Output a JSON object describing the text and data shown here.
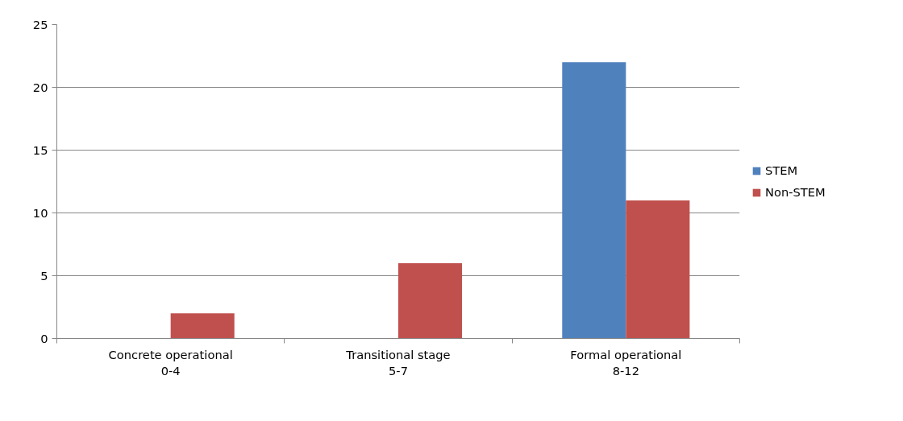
{
  "chart_data": {
    "type": "bar",
    "categories": [
      "Concrete operational\n0-4",
      "Transitional stage\n5-7",
      "Formal operational\n8-12"
    ],
    "series": [
      {
        "name": "STEM",
        "color": "#4f81bd",
        "values": [
          0,
          0,
          22
        ]
      },
      {
        "name": "Non-STEM",
        "color": "#c0504d",
        "values": [
          2,
          6,
          11
        ]
      }
    ],
    "ylim": [
      0,
      25
    ],
    "yticks": [
      0,
      5,
      10,
      15,
      20,
      25
    ],
    "grid": "y",
    "legend": "right"
  }
}
